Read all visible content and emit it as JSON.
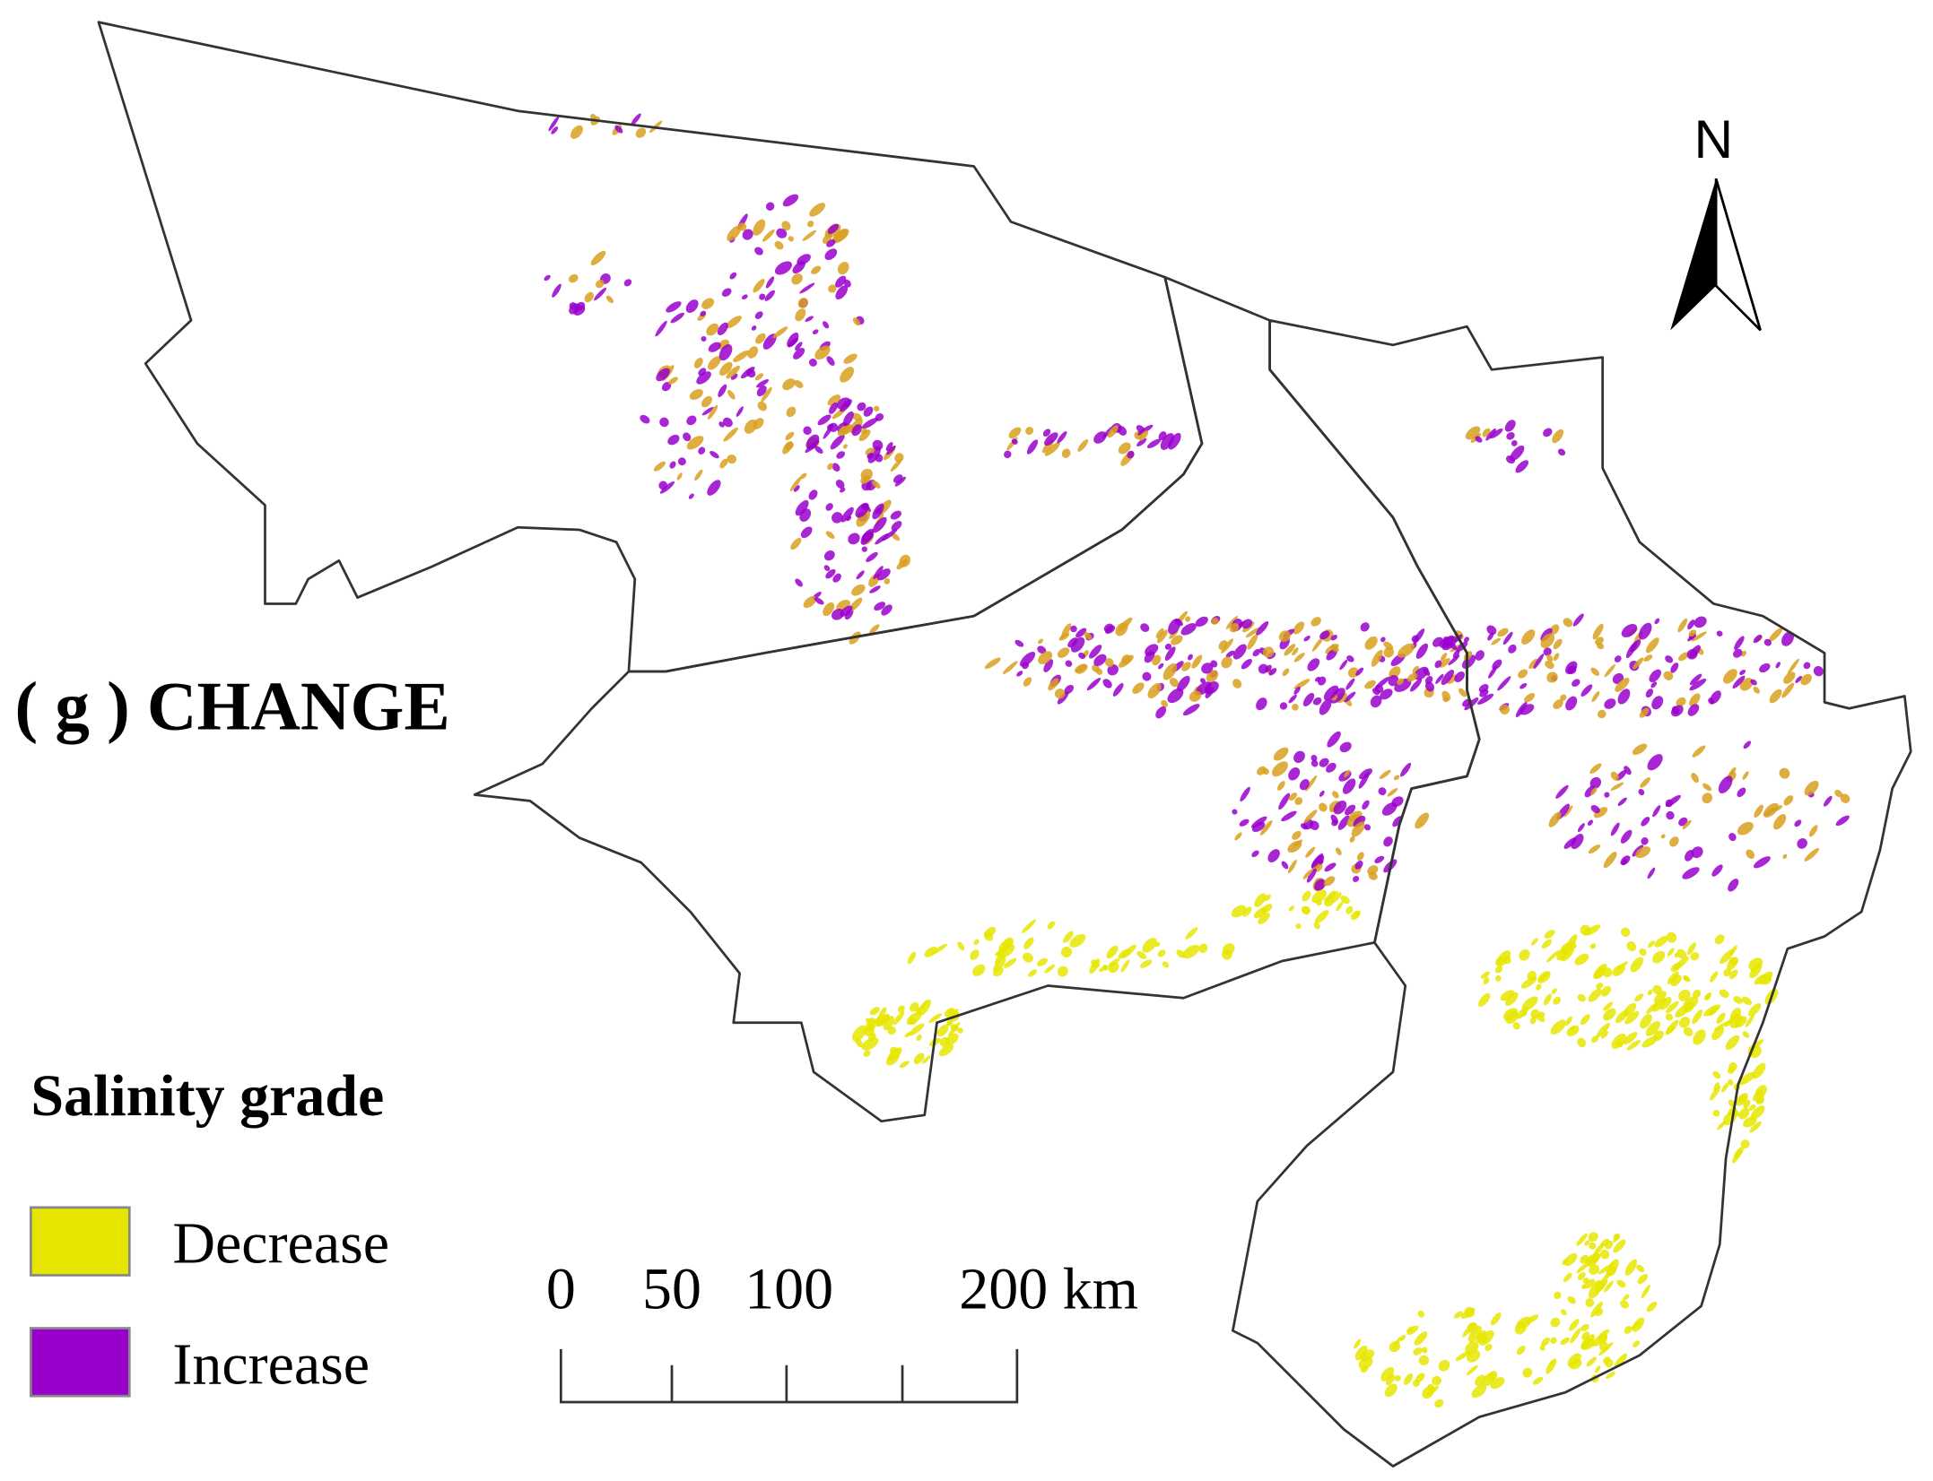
{
  "title": "( g ) CHANGE",
  "north": "N",
  "legend": {
    "title": "Salinity grade",
    "items": [
      {
        "label": "Decrease",
        "color": "#e6e600"
      },
      {
        "label": "Increase",
        "color": "#9900cc"
      }
    ]
  },
  "scale_bar": {
    "labels": [
      "0",
      "50",
      "100",
      "200 km"
    ]
  }
}
